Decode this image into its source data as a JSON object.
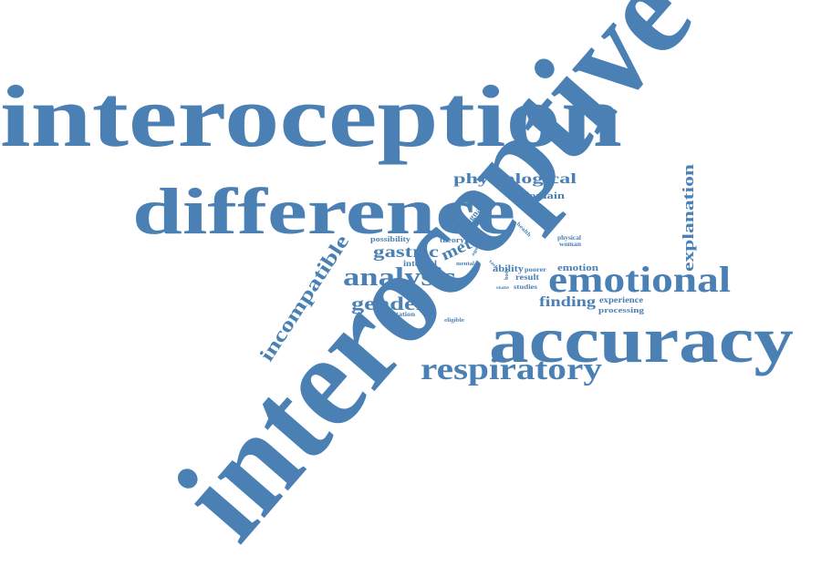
{
  "color": "#4a80b4",
  "words": [
    {
      "key": "interoception",
      "text": "interoception"
    },
    {
      "key": "interoceptive",
      "text": "interoceptive"
    },
    {
      "key": "difference",
      "text": "difference"
    },
    {
      "key": "accuracy",
      "text": "accuracy"
    },
    {
      "key": "emotional",
      "text": "emotional"
    },
    {
      "key": "respiratory",
      "text": "respiratory"
    },
    {
      "key": "analysis",
      "text": "analysis"
    },
    {
      "key": "incompatible",
      "text": "incompatible"
    },
    {
      "key": "explanation",
      "text": "explanation"
    },
    {
      "key": "physiological",
      "text": "physiological"
    },
    {
      "key": "gender",
      "text": "gender"
    },
    {
      "key": "gastric",
      "text": "gastric"
    },
    {
      "key": "meta",
      "text": "meta"
    },
    {
      "key": "finding",
      "text": "finding"
    },
    {
      "key": "domain",
      "text": "domain"
    },
    {
      "key": "emotion",
      "text": "emotion"
    },
    {
      "key": "experience",
      "text": "experience"
    },
    {
      "key": "processing",
      "text": "processing"
    },
    {
      "key": "ability",
      "text": "ability"
    },
    {
      "key": "result",
      "text": "result"
    },
    {
      "key": "poorer",
      "text": "poorer"
    },
    {
      "key": "studies",
      "text": "studies"
    },
    {
      "key": "signal",
      "text": "signal"
    },
    {
      "key": "theory",
      "text": "theory"
    },
    {
      "key": "possibility",
      "text": "possibility"
    },
    {
      "key": "internal",
      "text": "internal"
    },
    {
      "key": "mental",
      "text": "mental"
    },
    {
      "key": "limitation",
      "text": "limitation"
    },
    {
      "key": "eligible",
      "text": "eligible"
    },
    {
      "key": "physical",
      "text": "physical"
    },
    {
      "key": "woman",
      "text": "woman"
    },
    {
      "key": "health",
      "text": "health"
    },
    {
      "key": "task",
      "text": "task"
    },
    {
      "key": "state",
      "text": "state"
    },
    {
      "key": "body",
      "text": "body"
    },
    {
      "key": "age",
      "text": "age"
    }
  ]
}
